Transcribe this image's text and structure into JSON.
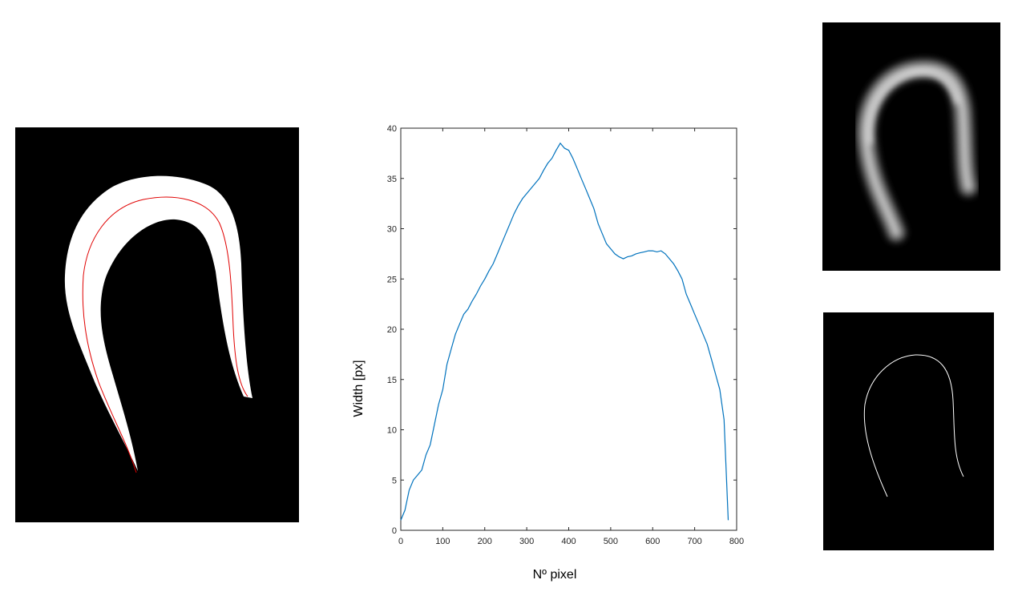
{
  "panels": {
    "left": {
      "description_icon": "binary-mask-with-centerline-image"
    },
    "top_right": {
      "description_icon": "distance-transform-image"
    },
    "bottom_right": {
      "description_icon": "skeleton-image"
    }
  },
  "colors": {
    "line": "#0072BD",
    "centerline": "#e00000",
    "mask": "#ffffff",
    "background": "#000000"
  },
  "chart_data": {
    "type": "line",
    "title": "",
    "xlabel": "Nº pixel",
    "ylabel": "Width [px]",
    "xlim": [
      0,
      800
    ],
    "ylim": [
      0,
      40
    ],
    "xticks": [
      0,
      100,
      200,
      300,
      400,
      500,
      600,
      700,
      800
    ],
    "yticks": [
      0,
      5,
      10,
      15,
      20,
      25,
      30,
      35,
      40
    ],
    "grid": false,
    "series": [
      {
        "x": [
          0,
          10,
          20,
          30,
          40,
          50,
          60,
          70,
          80,
          90,
          100,
          110,
          120,
          130,
          140,
          150,
          160,
          170,
          180,
          190,
          200,
          210,
          220,
          230,
          240,
          250,
          260,
          270,
          280,
          290,
          300,
          310,
          320,
          330,
          340,
          350,
          360,
          370,
          380,
          390,
          400,
          410,
          420,
          430,
          440,
          450,
          460,
          470,
          480,
          490,
          500,
          510,
          520,
          530,
          540,
          550,
          560,
          570,
          580,
          590,
          600,
          610,
          620,
          630,
          640,
          650,
          660,
          670,
          680,
          690,
          700,
          710,
          720,
          730,
          740,
          750,
          760,
          770,
          780
        ],
        "y": [
          1,
          2,
          4,
          5,
          5.5,
          6,
          7.5,
          8.5,
          10.5,
          12.5,
          14,
          16.5,
          18,
          19.5,
          20.5,
          21.5,
          22,
          22.8,
          23.5,
          24.3,
          25,
          25.8,
          26.5,
          27.5,
          28.5,
          29.5,
          30.5,
          31.5,
          32.3,
          33,
          33.5,
          34,
          34.5,
          35,
          35.8,
          36.5,
          37,
          37.8,
          38.5,
          38,
          37.8,
          37,
          36,
          35,
          34,
          33,
          32,
          30.5,
          29.5,
          28.5,
          28,
          27.5,
          27.2,
          27,
          27.2,
          27.3,
          27.5,
          27.6,
          27.7,
          27.8,
          27.8,
          27.7,
          27.8,
          27.5,
          27,
          26.5,
          25.8,
          25,
          23.5,
          22.5,
          21.5,
          20.5,
          19.5,
          18.5,
          17,
          15.5,
          14,
          11,
          1
        ]
      }
    ]
  }
}
